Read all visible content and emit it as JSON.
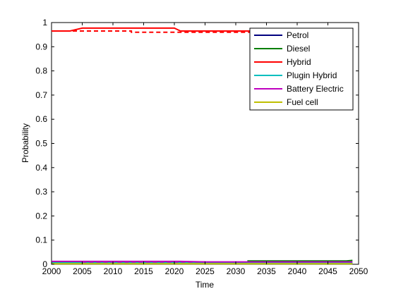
{
  "chart_data": {
    "type": "line",
    "xlabel": "Time",
    "ylabel": "Probability",
    "xlim": [
      2000,
      2050
    ],
    "ylim": [
      0,
      1
    ],
    "xticks": [
      2000,
      2005,
      2010,
      2015,
      2020,
      2025,
      2030,
      2035,
      2040,
      2045,
      2050
    ],
    "yticks": [
      0,
      0.1,
      0.2,
      0.3,
      0.4,
      0.5,
      0.6,
      0.7,
      0.8,
      0.9,
      1
    ],
    "grid": false,
    "legend_position": "top-right",
    "series": [
      {
        "name": "Petrol",
        "color": "#00007f",
        "x": [
          2000,
          2049
        ],
        "y": [
          0.003,
          0.003
        ]
      },
      {
        "name": "Diesel",
        "color": "#007f00",
        "x": [
          2000,
          2032,
          2032,
          2048,
          2049
        ],
        "y": [
          0.008,
          0.008,
          0.014,
          0.014,
          0.016
        ]
      },
      {
        "name": "Hybrid",
        "color": "#ff0000",
        "x": [
          2000,
          2003,
          2005,
          2020,
          2021,
          2030,
          2032,
          2049
        ],
        "y": [
          0.965,
          0.965,
          0.977,
          0.977,
          0.965,
          0.965,
          0.965,
          0.965
        ]
      },
      {
        "name": "Plugin Hybrid",
        "color": "#00bfbf",
        "x": [
          2000,
          2049
        ],
        "y": [
          0.006,
          0.006
        ]
      },
      {
        "name": "Battery Electric",
        "color": "#bf00bf",
        "x": [
          2000,
          2021,
          2025,
          2049
        ],
        "y": [
          0.012,
          0.012,
          0.01,
          0.01
        ]
      },
      {
        "name": "Fuel cell",
        "color": "#bfbf00",
        "x": [
          2000,
          2049
        ],
        "y": [
          0.002,
          0.002
        ]
      }
    ],
    "dashed_series": [
      {
        "name": "Hybrid",
        "color": "#ff0000",
        "x": [
          2000,
          2005,
          2013,
          2013,
          2049
        ],
        "y": [
          0.965,
          0.965,
          0.965,
          0.96,
          0.96
        ]
      },
      {
        "name": "Battery Electric",
        "color": "#bf00bf",
        "x": [
          2005,
          2025
        ],
        "y": [
          0.01,
          0.01
        ]
      }
    ]
  }
}
